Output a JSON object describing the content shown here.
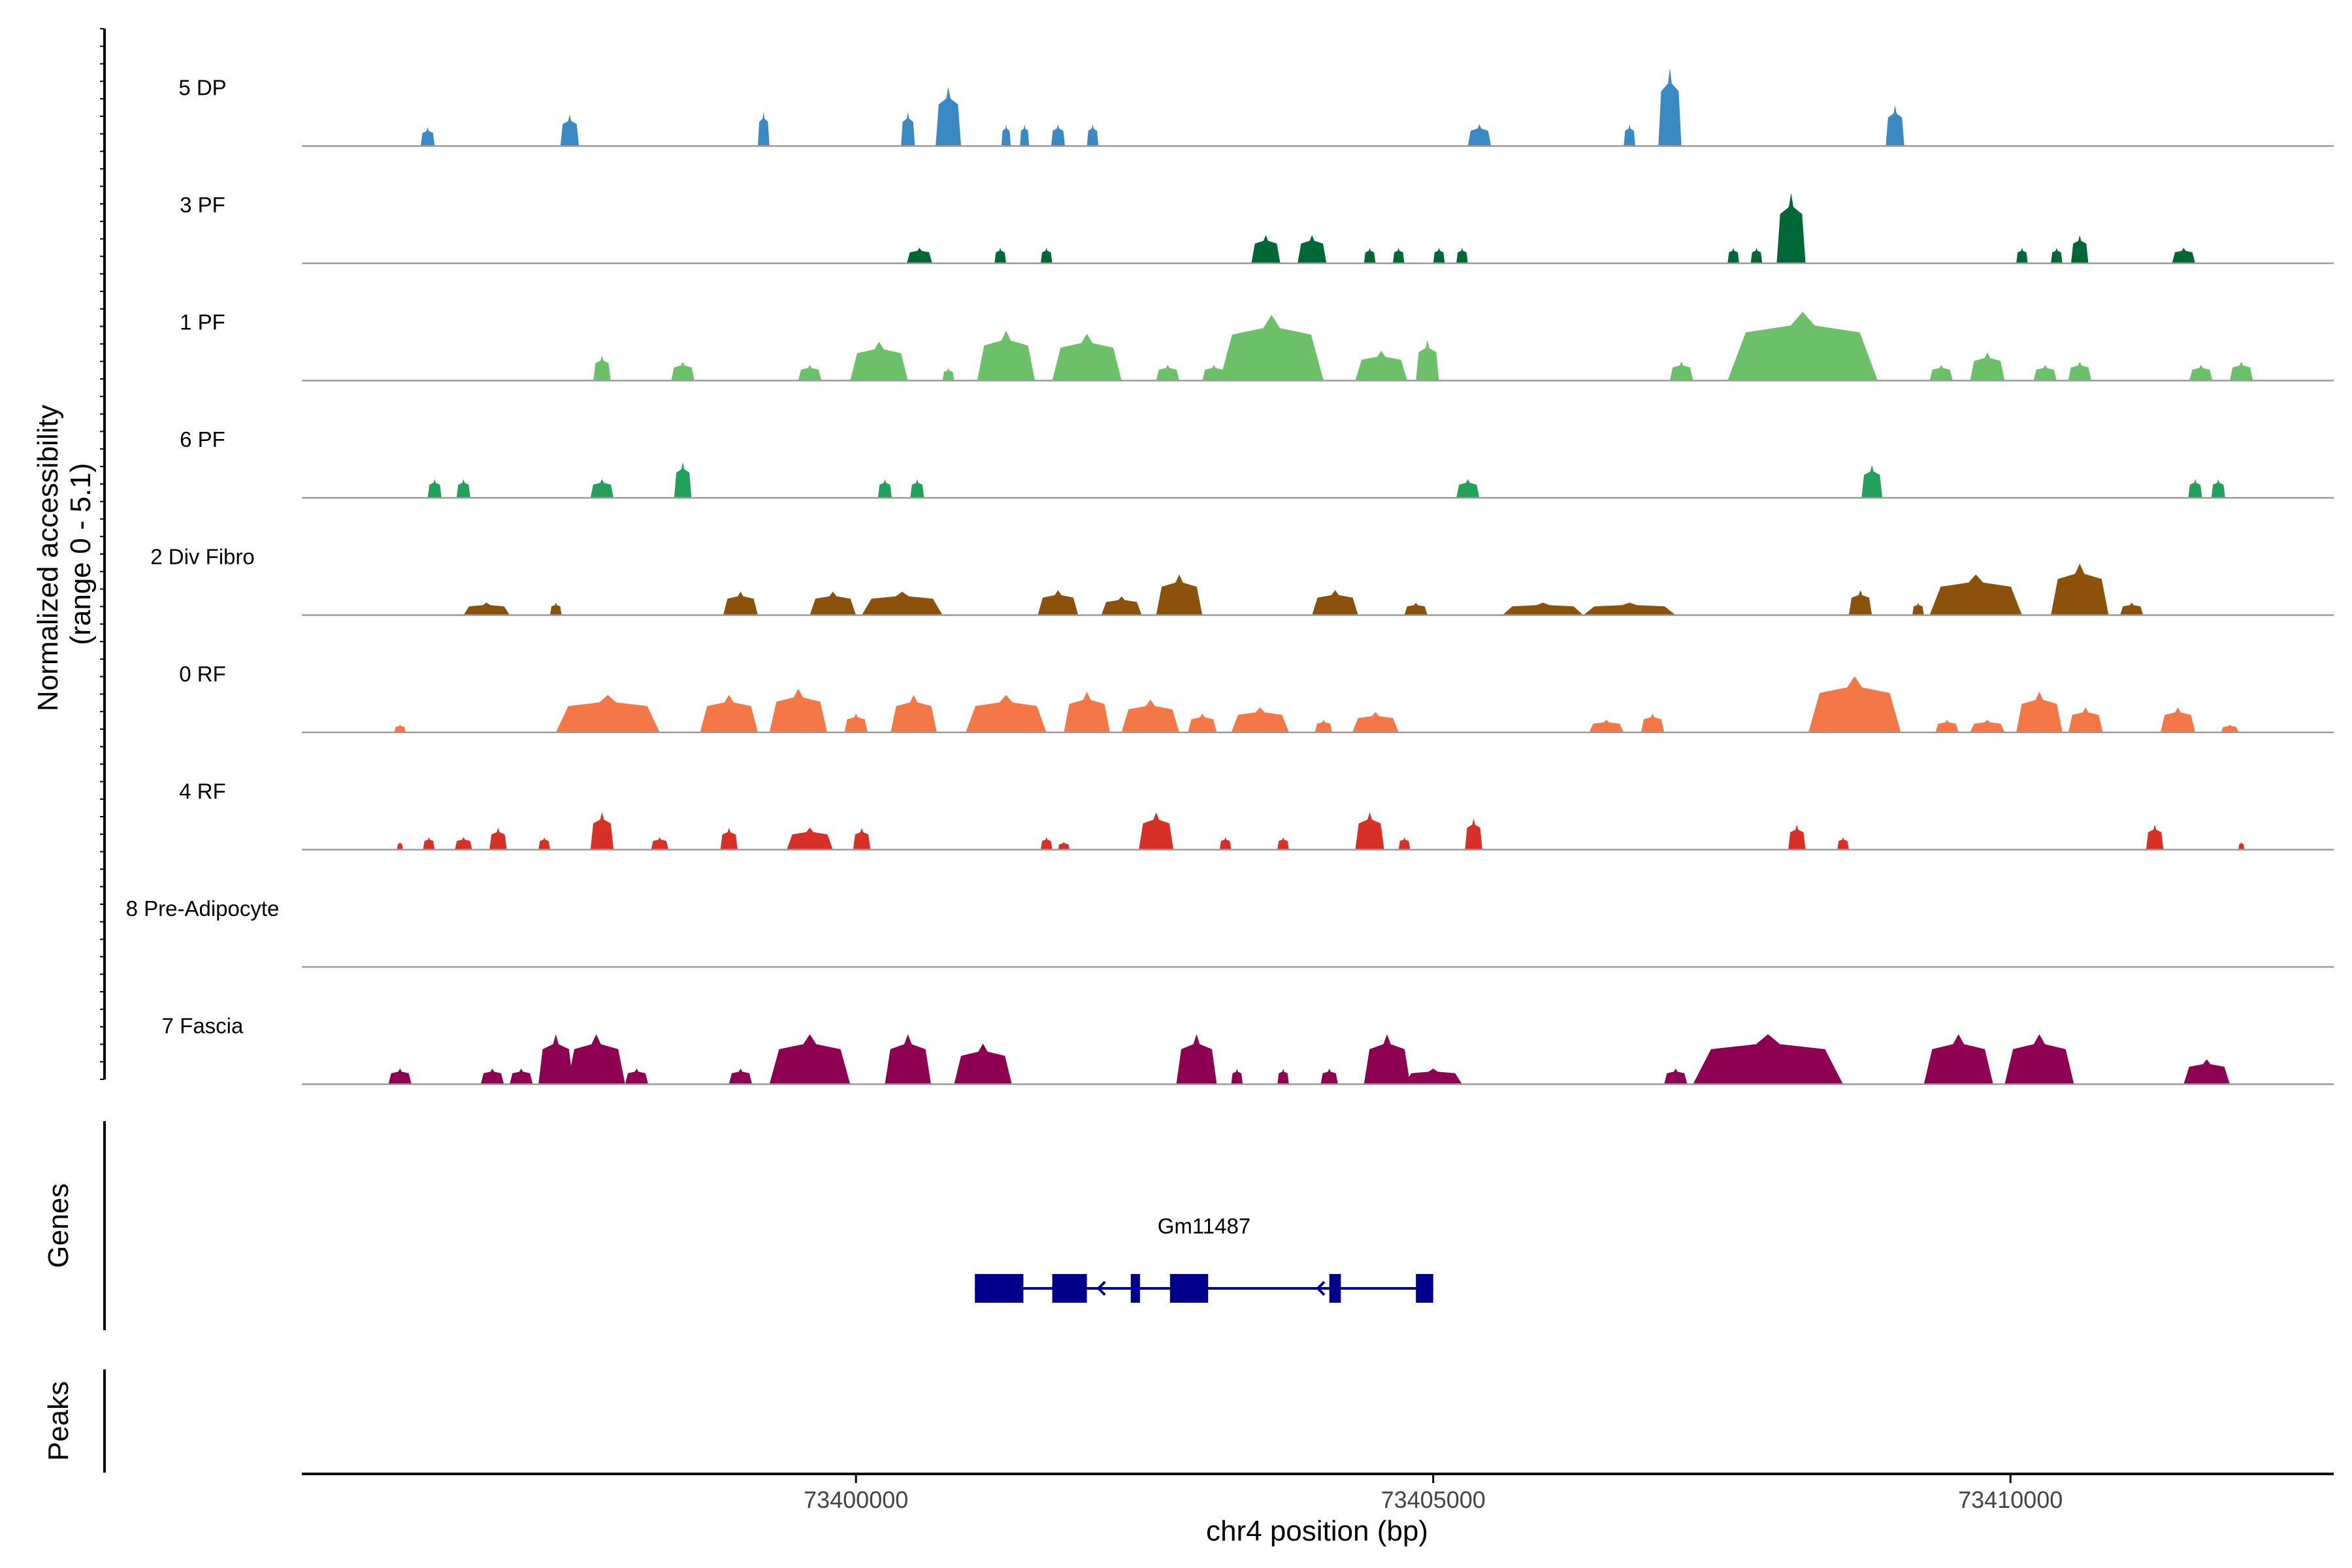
{
  "chart_data": {
    "type": "area",
    "title": "",
    "y_axis_label_line1": "Normalized accessibility",
    "y_axis_label_line2": "(range 0 - 5.1)",
    "y_range": [
      0,
      5.1
    ],
    "x_axis_label": "chr4 position (bp)",
    "x_range": [
      73395200,
      73412800
    ],
    "x_ticks": [
      {
        "value": 73400000,
        "label": "73400000"
      },
      {
        "value": 73405000,
        "label": "73405000"
      },
      {
        "value": 73410000,
        "label": "73410000"
      }
    ],
    "tracks": [
      {
        "name": "5 DP",
        "color": "#3A89C2",
        "peaks": [
          [
            73396290,
            120,
            1.2
          ],
          [
            73397520,
            160,
            2.0
          ],
          [
            73399200,
            100,
            2.2
          ],
          [
            73400450,
            120,
            2.2
          ],
          [
            73400800,
            220,
            3.8
          ],
          [
            73401300,
            80,
            1.4
          ],
          [
            73401460,
            80,
            1.4
          ],
          [
            73401750,
            120,
            1.4
          ],
          [
            73402050,
            100,
            1.4
          ],
          [
            73405400,
            200,
            1.4
          ],
          [
            73406700,
            100,
            1.4
          ],
          [
            73407050,
            200,
            5.0
          ],
          [
            73409000,
            160,
            2.6
          ]
        ]
      },
      {
        "name": "3 PF",
        "color": "#006837",
        "peaks": [
          [
            73400550,
            220,
            1.0
          ],
          [
            73401250,
            100,
            1.0
          ],
          [
            73401650,
            100,
            1.0
          ],
          [
            73403550,
            250,
            1.8
          ],
          [
            73403950,
            250,
            1.8
          ],
          [
            73404450,
            100,
            1.0
          ],
          [
            73404700,
            100,
            1.0
          ],
          [
            73405050,
            100,
            1.0
          ],
          [
            73405250,
            100,
            1.0
          ],
          [
            73407600,
            100,
            1.0
          ],
          [
            73407800,
            100,
            1.0
          ],
          [
            73408100,
            250,
            4.5
          ],
          [
            73410100,
            100,
            1.0
          ],
          [
            73410400,
            100,
            1.0
          ],
          [
            73410600,
            150,
            1.8
          ],
          [
            73411500,
            200,
            1.0
          ]
        ]
      },
      {
        "name": "1 PF",
        "color": "#6CC06A",
        "peaks": [
          [
            73397800,
            150,
            1.6
          ],
          [
            73398500,
            200,
            1.2
          ],
          [
            73399600,
            200,
            1.0
          ],
          [
            73400200,
            500,
            2.5
          ],
          [
            73400800,
            100,
            0.8
          ],
          [
            73401300,
            500,
            3.2
          ],
          [
            73402000,
            600,
            3.0
          ],
          [
            73402700,
            200,
            1.0
          ],
          [
            73403100,
            200,
            1.0
          ],
          [
            73403600,
            900,
            4.2
          ],
          [
            73404550,
            450,
            1.9
          ],
          [
            73404950,
            200,
            2.6
          ],
          [
            73407150,
            200,
            1.2
          ],
          [
            73408200,
            1300,
            4.4
          ],
          [
            73409400,
            200,
            1.0
          ],
          [
            73409800,
            300,
            1.8
          ],
          [
            73410300,
            200,
            1.0
          ],
          [
            73410600,
            200,
            1.2
          ],
          [
            73411650,
            200,
            1.0
          ],
          [
            73412000,
            200,
            1.2
          ]
        ]
      },
      {
        "name": "6 PF",
        "color": "#23A15A",
        "peaks": [
          [
            73396350,
            120,
            1.2
          ],
          [
            73396600,
            120,
            1.2
          ],
          [
            73397800,
            200,
            1.2
          ],
          [
            73398500,
            150,
            2.3
          ],
          [
            73400250,
            120,
            1.2
          ],
          [
            73400530,
            120,
            1.2
          ],
          [
            73405300,
            200,
            1.2
          ],
          [
            73408800,
            180,
            2.1
          ],
          [
            73411600,
            120,
            1.2
          ],
          [
            73411800,
            120,
            1.2
          ]
        ]
      },
      {
        "name": "2 Div Fibro",
        "color": "#8C510A",
        "peaks": [
          [
            73396800,
            400,
            0.8
          ],
          [
            73397400,
            100,
            0.8
          ],
          [
            73399000,
            300,
            1.5
          ],
          [
            73399800,
            400,
            1.5
          ],
          [
            73400400,
            700,
            1.5
          ],
          [
            73401750,
            350,
            1.6
          ],
          [
            73402300,
            350,
            1.2
          ],
          [
            73402800,
            400,
            2.6
          ],
          [
            73404150,
            400,
            1.6
          ],
          [
            73404850,
            200,
            0.8
          ],
          [
            73405950,
            700,
            0.8
          ],
          [
            73406700,
            800,
            0.8
          ],
          [
            73408700,
            200,
            1.6
          ],
          [
            73409200,
            100,
            0.8
          ],
          [
            73409700,
            800,
            2.6
          ],
          [
            73410600,
            500,
            3.3
          ],
          [
            73411050,
            200,
            0.8
          ]
        ]
      },
      {
        "name": "0 RF",
        "color": "#F47748",
        "peaks": [
          [
            73396050,
            100,
            0.5
          ],
          [
            73397850,
            900,
            2.4
          ],
          [
            73398900,
            500,
            2.4
          ],
          [
            73399500,
            500,
            2.8
          ],
          [
            73400000,
            200,
            1.2
          ],
          [
            73400500,
            400,
            2.4
          ],
          [
            73401300,
            700,
            2.4
          ],
          [
            73402000,
            400,
            2.6
          ],
          [
            73402550,
            500,
            2.1
          ],
          [
            73403000,
            250,
            1.2
          ],
          [
            73403500,
            500,
            1.6
          ],
          [
            73404050,
            150,
            0.8
          ],
          [
            73404500,
            400,
            1.3
          ],
          [
            73406500,
            300,
            0.8
          ],
          [
            73406900,
            200,
            1.2
          ],
          [
            73408650,
            800,
            3.6
          ],
          [
            73409450,
            200,
            0.8
          ],
          [
            73409800,
            300,
            0.8
          ],
          [
            73410250,
            400,
            2.6
          ],
          [
            73410650,
            300,
            1.6
          ],
          [
            73411450,
            300,
            1.6
          ],
          [
            73411900,
            150,
            0.5
          ]
        ]
      },
      {
        "name": "4 RF",
        "color": "#D73027",
        "peaks": [
          [
            73396050,
            50,
            0.5
          ],
          [
            73396300,
            100,
            0.8
          ],
          [
            73396600,
            150,
            0.8
          ],
          [
            73396900,
            150,
            1.4
          ],
          [
            73397300,
            100,
            0.8
          ],
          [
            73397800,
            200,
            2.4
          ],
          [
            73398300,
            150,
            0.8
          ],
          [
            73398900,
            150,
            1.4
          ],
          [
            73399600,
            400,
            1.4
          ],
          [
            73400050,
            150,
            1.4
          ],
          [
            73401650,
            100,
            0.8
          ],
          [
            73401800,
            100,
            0.5
          ],
          [
            73402600,
            300,
            2.4
          ],
          [
            73403200,
            100,
            0.8
          ],
          [
            73403700,
            100,
            0.8
          ],
          [
            73404450,
            250,
            2.4
          ],
          [
            73404750,
            100,
            0.8
          ],
          [
            73405350,
            150,
            2.0
          ],
          [
            73408150,
            150,
            1.6
          ],
          [
            73408550,
            100,
            0.8
          ],
          [
            73411250,
            150,
            1.6
          ],
          [
            73412000,
            50,
            0.5
          ]
        ]
      },
      {
        "name": "8 Pre-Adipocyte",
        "color": "#999999",
        "peaks": []
      },
      {
        "name": "7 Fascia",
        "color": "#8E0152",
        "peaks": [
          [
            73396050,
            200,
            1.0
          ],
          [
            73396850,
            200,
            1.0
          ],
          [
            73397100,
            200,
            1.0
          ],
          [
            73397400,
            300,
            3.2
          ],
          [
            73397750,
            500,
            3.2
          ],
          [
            73398100,
            200,
            1.0
          ],
          [
            73399000,
            200,
            1.0
          ],
          [
            73399600,
            700,
            3.2
          ],
          [
            73400450,
            400,
            3.2
          ],
          [
            73401100,
            500,
            2.6
          ],
          [
            73402950,
            350,
            3.2
          ],
          [
            73403300,
            100,
            1.0
          ],
          [
            73403700,
            100,
            1.0
          ],
          [
            73404100,
            150,
            1.0
          ],
          [
            73404600,
            400,
            3.2
          ],
          [
            73405000,
            500,
            1.0
          ],
          [
            73407100,
            200,
            1.0
          ],
          [
            73407900,
            1300,
            3.2
          ],
          [
            73409550,
            600,
            3.2
          ],
          [
            73410250,
            600,
            3.2
          ],
          [
            73411700,
            400,
            1.6
          ]
        ]
      }
    ],
    "genes_track": {
      "label": "Genes",
      "gene_name": "Gm11487",
      "color": "#00008B",
      "strand": "-",
      "span": [
        73401030,
        73405000
      ],
      "exons": [
        [
          73401030,
          73401450
        ],
        [
          73401700,
          73402000
        ],
        [
          73402380,
          73402460
        ],
        [
          73402720,
          73403050
        ],
        [
          73404100,
          73404200
        ],
        [
          73404850,
          73405000
        ]
      ],
      "arrows": [
        73402100,
        73404000
      ]
    },
    "peaks_track": {
      "label": "Peaks",
      "peaks": []
    }
  }
}
